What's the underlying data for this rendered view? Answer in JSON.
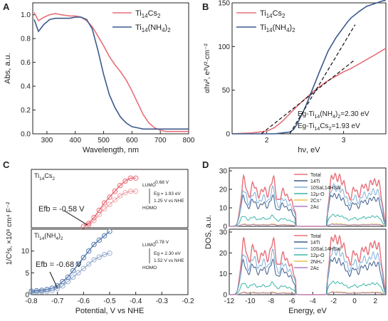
{
  "panels": {
    "A": {
      "letter": "A"
    },
    "B": {
      "letter": "B"
    },
    "C": {
      "letter": "C"
    },
    "D": {
      "letter": "D"
    }
  },
  "chart_data": [
    {
      "id": "A",
      "type": "line",
      "xlabel": "Wavelength, nm",
      "ylabel": "Abs, a.u.",
      "xlim": [
        250,
        800
      ],
      "ylim": [
        0,
        1.1
      ],
      "xticks": [
        300,
        400,
        500,
        600,
        700,
        800
      ],
      "yticks": [
        0.0,
        0.2,
        0.4,
        0.6,
        0.8,
        1.0
      ],
      "legend": "top-right",
      "series": [
        {
          "name": "Ti14Cs2",
          "color": "#e8707a",
          "x": [
            255,
            270,
            290,
            310,
            330,
            350,
            380,
            400,
            420,
            440,
            460,
            480,
            500,
            520,
            540,
            560,
            580,
            600,
            620,
            640,
            660,
            680,
            700,
            720,
            740,
            760,
            780,
            800
          ],
          "y": [
            1.02,
            0.95,
            0.98,
            1.0,
            1.01,
            1.0,
            0.99,
            0.99,
            0.98,
            0.95,
            0.9,
            0.82,
            0.74,
            0.65,
            0.58,
            0.52,
            0.45,
            0.36,
            0.26,
            0.16,
            0.09,
            0.05,
            0.03,
            0.02,
            0.02,
            0.02,
            0.02,
            0.02
          ]
        },
        {
          "name": "Ti14(NH4)2",
          "color": "#3c5a8c",
          "x": [
            255,
            270,
            290,
            310,
            330,
            350,
            380,
            400,
            420,
            440,
            460,
            480,
            500,
            520,
            540,
            560,
            580,
            600,
            620,
            640,
            660,
            680,
            700,
            720,
            740,
            760,
            780,
            800
          ],
          "y": [
            0.96,
            0.86,
            0.92,
            0.96,
            0.97,
            0.97,
            0.97,
            0.98,
            0.98,
            0.96,
            0.88,
            0.7,
            0.5,
            0.33,
            0.22,
            0.14,
            0.09,
            0.06,
            0.05,
            0.04,
            0.04,
            0.04,
            0.04,
            0.04,
            0.04,
            0.04,
            0.04,
            0.04
          ]
        }
      ]
    },
    {
      "id": "B",
      "type": "line",
      "xlabel": "hν, eV",
      "ylabel": "αhν², e²V²·cm⁻²",
      "xlim": [
        1.55,
        3.55
      ],
      "ylim": [
        0,
        150
      ],
      "xticks": [
        2,
        3
      ],
      "yticks": [
        0,
        50,
        100,
        150
      ],
      "legend": "top-left",
      "series": [
        {
          "name": "Ti14Cs2",
          "color": "#e8707a",
          "x": [
            1.55,
            1.8,
            2.0,
            2.1,
            2.2,
            2.3,
            2.4,
            2.5,
            2.6,
            2.7,
            2.8,
            2.9,
            3.0,
            3.1,
            3.2,
            3.3,
            3.4,
            3.55
          ],
          "y": [
            0,
            1,
            3,
            7,
            14,
            23,
            32,
            40,
            48,
            55,
            61,
            66,
            71,
            75,
            80,
            85,
            90,
            98
          ]
        },
        {
          "name": "Ti14(NH4)2",
          "color": "#3c5a8c",
          "x": [
            1.55,
            2.1,
            2.2,
            2.3,
            2.35,
            2.4,
            2.5,
            2.6,
            2.7,
            2.8,
            2.9,
            3.0,
            3.05,
            3.1,
            3.2,
            3.3,
            3.4,
            3.5,
            3.55
          ],
          "y": [
            0,
            0,
            1,
            2,
            5,
            12,
            30,
            52,
            74,
            95,
            110,
            122,
            128,
            133,
            140,
            146,
            149,
            152,
            153
          ]
        }
      ],
      "fit_lines": [
        {
          "x": [
            1.93,
            3.15
          ],
          "y": [
            0,
            85
          ]
        },
        {
          "x": [
            2.3,
            3.15
          ],
          "y": [
            0,
            125
          ]
        }
      ],
      "annotations": [
        "Eg-Ti14(NH4)2=2.30 eV",
        "Eg-Ti14Cs2=1.93 eV"
      ]
    },
    {
      "id": "C",
      "type": "scatter",
      "xlabel": "Potential, V vs NHE",
      "ylabel": "1/C²s, ×10⁸ cm⁴ F⁻²",
      "xlim": [
        -0.8,
        -0.2
      ],
      "xticks": [
        -0.8,
        -0.7,
        -0.6,
        -0.5,
        -0.4,
        -0.3,
        -0.2
      ],
      "top": {
        "name": "Ti14Cs2",
        "color": "#e8707a",
        "ylim": [
          0,
          40
        ],
        "x": [
          -0.6,
          -0.58,
          -0.56,
          -0.54,
          -0.52,
          -0.5,
          -0.48,
          -0.46,
          -0.44,
          -0.42,
          -0.4
        ],
        "y1": [
          1,
          3,
          7,
          12,
          17,
          21,
          25,
          29,
          32,
          34,
          34
        ],
        "y2": [
          1,
          2,
          5,
          9,
          13,
          16,
          19,
          22,
          24,
          25,
          25
        ],
        "efb": "Efb = -0.58 V",
        "lumo": "LUMO",
        "lumo_v": "-0.68 V",
        "eg": "Eg = 1.93 eV",
        "homo_v": "1.25 V vs NHE",
        "homo": "HOMO"
      },
      "bottom": {
        "name": "Ti14(NH4)2",
        "color": "#5b7db0",
        "ylim": [
          0,
          15
        ],
        "yticks": [
          0,
          5,
          10
        ],
        "x": [
          -0.8,
          -0.78,
          -0.76,
          -0.74,
          -0.72,
          -0.7,
          -0.68,
          -0.66,
          -0.64,
          -0.62,
          -0.6,
          -0.58,
          -0.56,
          -0.54,
          -0.52,
          -0.5
        ],
        "y1": [
          0.8,
          0.9,
          1,
          1.2,
          1.5,
          2,
          3,
          4,
          5.5,
          7,
          8.5,
          10,
          11.5,
          12.5,
          13.5,
          14.5
        ],
        "y2": [
          0.5,
          0.6,
          0.7,
          0.8,
          1,
          1.4,
          2,
          3,
          4,
          5,
          6,
          7,
          8,
          8.6,
          9.2,
          9.5
        ],
        "efb": "Efb = -0.68 V",
        "lumo": "LUMO",
        "lumo_v": "-0.78 V",
        "eg": "Eg = 2.30 eV",
        "homo_v": "1.52 V vs NHE",
        "homo": "HOMO"
      }
    },
    {
      "id": "D",
      "type": "line",
      "xlabel": "Energy, eV",
      "ylabel": "DOS, a.u.",
      "xlim": [
        -12,
        3
      ],
      "xticks": [
        -12,
        -10,
        -8,
        -6,
        -4,
        -2,
        0,
        2
      ],
      "yticks": [
        0,
        10,
        20,
        30
      ],
      "top_legend": [
        "Total",
        "14Ti",
        "10Sal,14HSal",
        "12μ-O",
        "2Cs⁺",
        "2Ac"
      ],
      "bottom_legend": [
        "Total",
        "14Ti",
        "10Sal,14HSal",
        "12μ-O",
        "2NH₄⁺",
        "2Ac"
      ],
      "colors": [
        "#e8707a",
        "#3c5a8c",
        "#7fb0d8",
        "#3bb5a8",
        "#e8c24a",
        "#b07fc0"
      ]
    }
  ]
}
